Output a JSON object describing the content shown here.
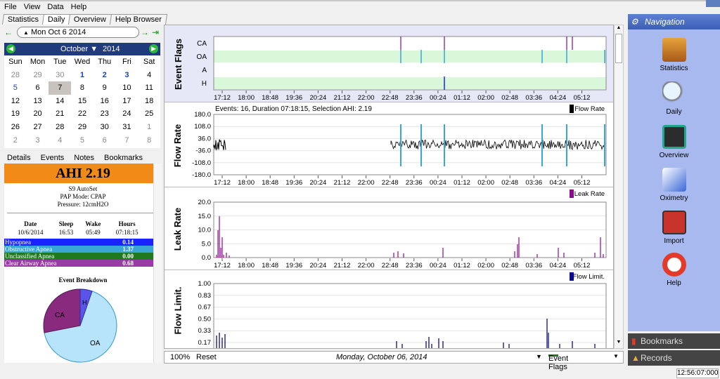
{
  "menu": [
    "File",
    "View",
    "Data",
    "Help"
  ],
  "tabs": [
    "Statistics",
    "Daily",
    "Overview",
    "Help Browser"
  ],
  "date_label": "Mon Oct 6 2014",
  "calendar": {
    "month": "October",
    "year": "2014",
    "weekdays": [
      "Sun",
      "Mon",
      "Tue",
      "Wed",
      "Thu",
      "Fri",
      "Sat"
    ],
    "days": [
      "28",
      "29",
      "30",
      "1",
      "2",
      "3",
      "4",
      "5",
      "6",
      "7",
      "8",
      "9",
      "10",
      "11",
      "12",
      "13",
      "14",
      "15",
      "16",
      "17",
      "18",
      "19",
      "20",
      "21",
      "22",
      "23",
      "24",
      "25",
      "26",
      "27",
      "28",
      "29",
      "30",
      "31",
      "1",
      "2",
      "3",
      "4",
      "5",
      "6",
      "7",
      "8"
    ]
  },
  "detail_tabs": [
    "Details",
    "Events",
    "Notes",
    "Bookmarks"
  ],
  "ahi": "AHI 2.19",
  "machine": "S9 AutoSet",
  "mode": "PAP Mode: CPAP",
  "pressure": "Pressure: 12cmH2O",
  "sleep": {
    "headers": [
      "Date",
      "Sleep",
      "Wake",
      "Hours"
    ],
    "values": [
      "10/6/2014",
      "16:53",
      "05:49",
      "07:18:15"
    ]
  },
  "events": [
    {
      "name": "Hypopnea",
      "value": "0.14",
      "color": "#1a22ff"
    },
    {
      "name": "Obstructive Apnea",
      "value": "1.37",
      "color": "#3aa6d6"
    },
    {
      "name": "Unclassified Apnea",
      "value": "0.00",
      "color": "#1f7a1f"
    },
    {
      "name": "Clear Airway Apnea",
      "value": "0.68",
      "color": "#9a3aa8"
    }
  ],
  "breakdown_title": "Event Breakdown",
  "pie": {
    "labels": [
      "CA",
      "H",
      "OA"
    ]
  },
  "time_ticks": [
    "17:12",
    "18:00",
    "18:48",
    "19:36",
    "20:24",
    "21:12",
    "22:00",
    "22:48",
    "23:36",
    "00:24",
    "01:12",
    "02:00",
    "02:48",
    "03:36",
    "04:24",
    "05:12"
  ],
  "flags": {
    "title": "Event Flags",
    "rows": [
      "CA",
      "OA",
      "A",
      "H"
    ]
  },
  "flow": {
    "title": "Flow Rate",
    "header": "Events: 16, Duration 07:18:15, Selection AHI: 2.19",
    "legend": "Flow Rate",
    "yticks": [
      "180.0",
      "108.0",
      "36.0",
      "-36.0",
      "-108.0",
      "-180.0"
    ]
  },
  "leak": {
    "title": "Leak Rate",
    "legend": "Leak Rate",
    "yticks": [
      "20.0",
      "15.0",
      "10.0",
      "5.0",
      "0.0"
    ]
  },
  "flowlimit": {
    "title": "Flow Limit.",
    "legend": "Flow Limit.",
    "yticks": [
      "1.00",
      "0.83",
      "0.67",
      "0.50",
      "0.33",
      "0.17"
    ]
  },
  "bottom": {
    "zoom": "100%",
    "reset": "Reset",
    "date": "Monday, October 06, 2014",
    "flags": "Event Flags"
  },
  "nav": {
    "title": "Navigation",
    "items": [
      "Statistics",
      "Daily",
      "Overview",
      "Oximetry",
      "Import",
      "Help"
    ],
    "bookmarks": "Bookmarks",
    "records": "Records"
  },
  "clock": "12:56:07:000",
  "colors": {
    "accent": "#f28a17",
    "nav_bg": "#a8b9ef",
    "flag_band": "#d9f7d9",
    "flow": "#000000",
    "leak": "#8b0a8b",
    "flowlimit": "#0a0a8b"
  }
}
